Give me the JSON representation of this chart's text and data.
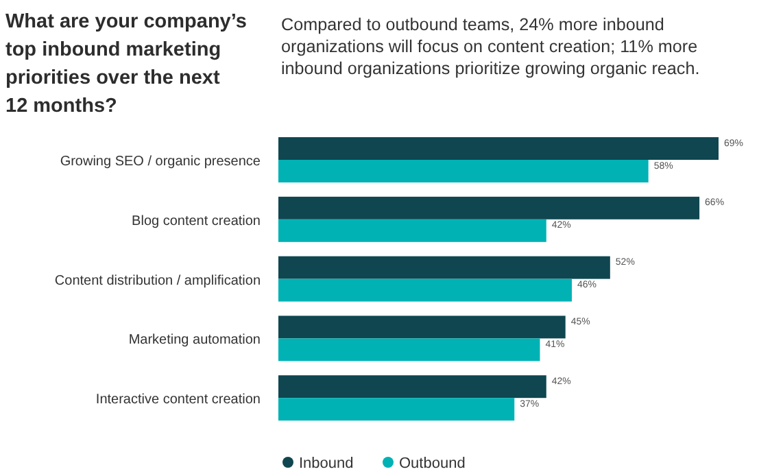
{
  "chart_data": {
    "type": "bar",
    "orientation": "horizontal",
    "title": "What are your company’s top inbound marketing priorities over the next 12 months?",
    "subtitle": "Compared to outbound teams, 24% more inbound organizations will focus on content creation; 11% more inbound organizations prioritize growing organic reach.",
    "categories": [
      "Growing SEO / organic presence",
      "Blog content creation",
      "Content distribution / amplification",
      "Marketing automation",
      "Interactive content creation"
    ],
    "series": [
      {
        "name": "Inbound",
        "color": "#0f4650",
        "values": [
          69,
          66,
          52,
          45,
          42
        ],
        "value_labels": [
          "69%",
          "66%",
          "52%",
          "45%",
          "42%"
        ]
      },
      {
        "name": "Outbound",
        "color": "#00b2b4",
        "values": [
          58,
          42,
          46,
          41,
          37
        ],
        "value_labels": [
          "58%",
          "42%",
          "46%",
          "41%",
          "37%"
        ]
      }
    ],
    "legend": "bottom"
  }
}
